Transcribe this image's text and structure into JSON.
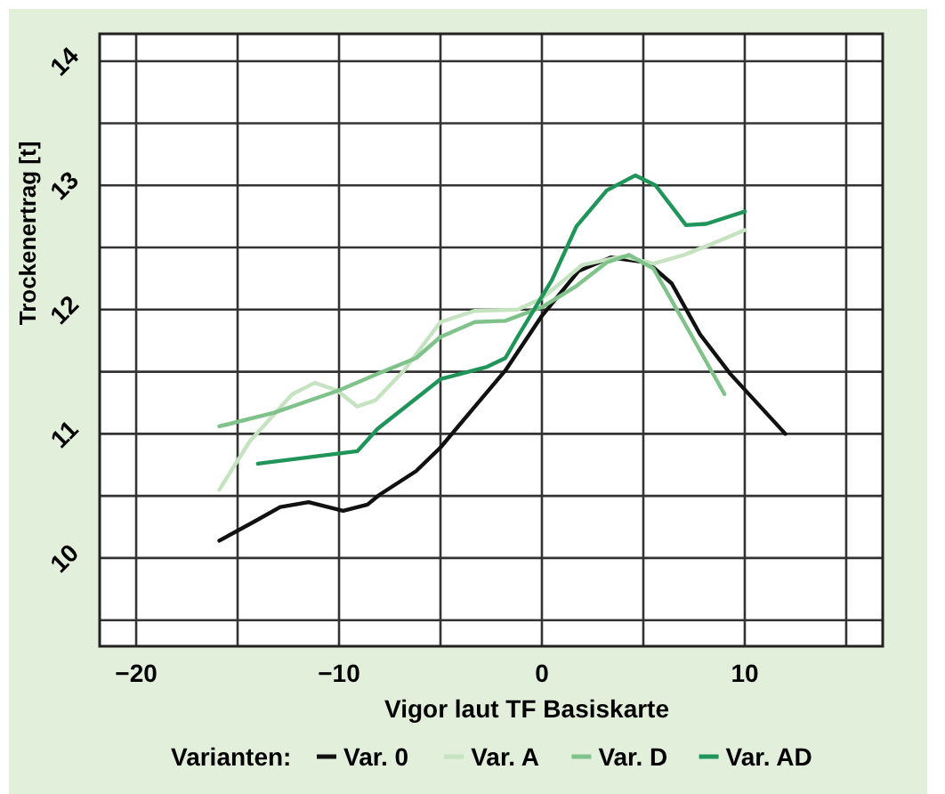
{
  "chart_data": {
    "type": "line",
    "xlabel": "Vigor laut TF Basiskarte",
    "ylabel": "Trockenertrag [t]",
    "legend_title": "Varianten:",
    "legend": "bottom",
    "grid": true,
    "line_style": "solid",
    "xlim": [
      -21.8,
      16.8
    ],
    "ylim": [
      9.29,
      14.22
    ],
    "xticks": [
      -20,
      {
        "value": -15,
        "label": null
      },
      -10,
      {
        "value": -5,
        "label": null
      },
      0,
      {
        "value": 5,
        "label": null
      },
      10,
      {
        "value": 15,
        "label": null
      }
    ],
    "yticks": [
      {
        "value": 9.5,
        "label": null
      },
      10,
      {
        "value": 10.5,
        "label": null
      },
      11,
      {
        "value": 11.5,
        "label": null
      },
      12,
      {
        "value": 12.5,
        "label": null
      },
      13,
      {
        "value": 13.5,
        "label": null
      },
      14
    ],
    "series": [
      {
        "name": "Var. 0",
        "color": "#111111",
        "x": [
          -15.9,
          -14.1,
          -12.9,
          -11.5,
          -9.8,
          -8.6,
          -8.0,
          -6.2,
          -5.0,
          -3.3,
          -1.8,
          0,
          1.8,
          3.4,
          5.2,
          6.4,
          7.8,
          9.3,
          12.0
        ],
        "values": [
          10.14,
          10.3,
          10.41,
          10.45,
          10.38,
          10.43,
          10.51,
          10.7,
          10.89,
          11.22,
          11.51,
          11.95,
          12.31,
          12.42,
          12.38,
          12.21,
          11.8,
          11.48,
          11.0
        ]
      },
      {
        "name": "Var. A",
        "color": "#c5e3c0",
        "x": [
          -15.9,
          -14.4,
          -12.3,
          -11.2,
          -10.1,
          -9.1,
          -8.2,
          -6.8,
          -5.0,
          -3.3,
          -1.2,
          0,
          2.0,
          4.0,
          5.5,
          7.0,
          8.4,
          10.0
        ],
        "values": [
          10.55,
          10.94,
          11.32,
          11.41,
          11.35,
          11.22,
          11.27,
          11.51,
          11.9,
          11.99,
          12.0,
          12.09,
          12.36,
          12.43,
          12.37,
          12.44,
          12.53,
          12.64
        ]
      },
      {
        "name": "Var. D",
        "color": "#7fc38a",
        "x": [
          -15.9,
          -13.2,
          -10.0,
          -8.0,
          -6.2,
          -5.0,
          -3.3,
          -1.8,
          0,
          1.7,
          3.2,
          4.3,
          5.5,
          7.0,
          9.0
        ],
        "values": [
          11.06,
          11.17,
          11.35,
          11.49,
          11.61,
          11.78,
          11.9,
          11.91,
          12.02,
          12.19,
          12.38,
          12.44,
          12.33,
          11.9,
          11.32
        ]
      },
      {
        "name": "Var. AD",
        "color": "#20955a",
        "x": [
          -14.0,
          -9.1,
          -8.1,
          -5.0,
          -2.7,
          -1.8,
          -1.2,
          0.5,
          1.7,
          3.2,
          4.6,
          5.6,
          7.1,
          8.1,
          10.0
        ],
        "values": [
          10.76,
          10.86,
          11.04,
          11.44,
          11.54,
          11.61,
          11.78,
          12.24,
          12.67,
          12.96,
          13.08,
          13.0,
          12.68,
          12.69,
          12.79
        ]
      }
    ]
  }
}
